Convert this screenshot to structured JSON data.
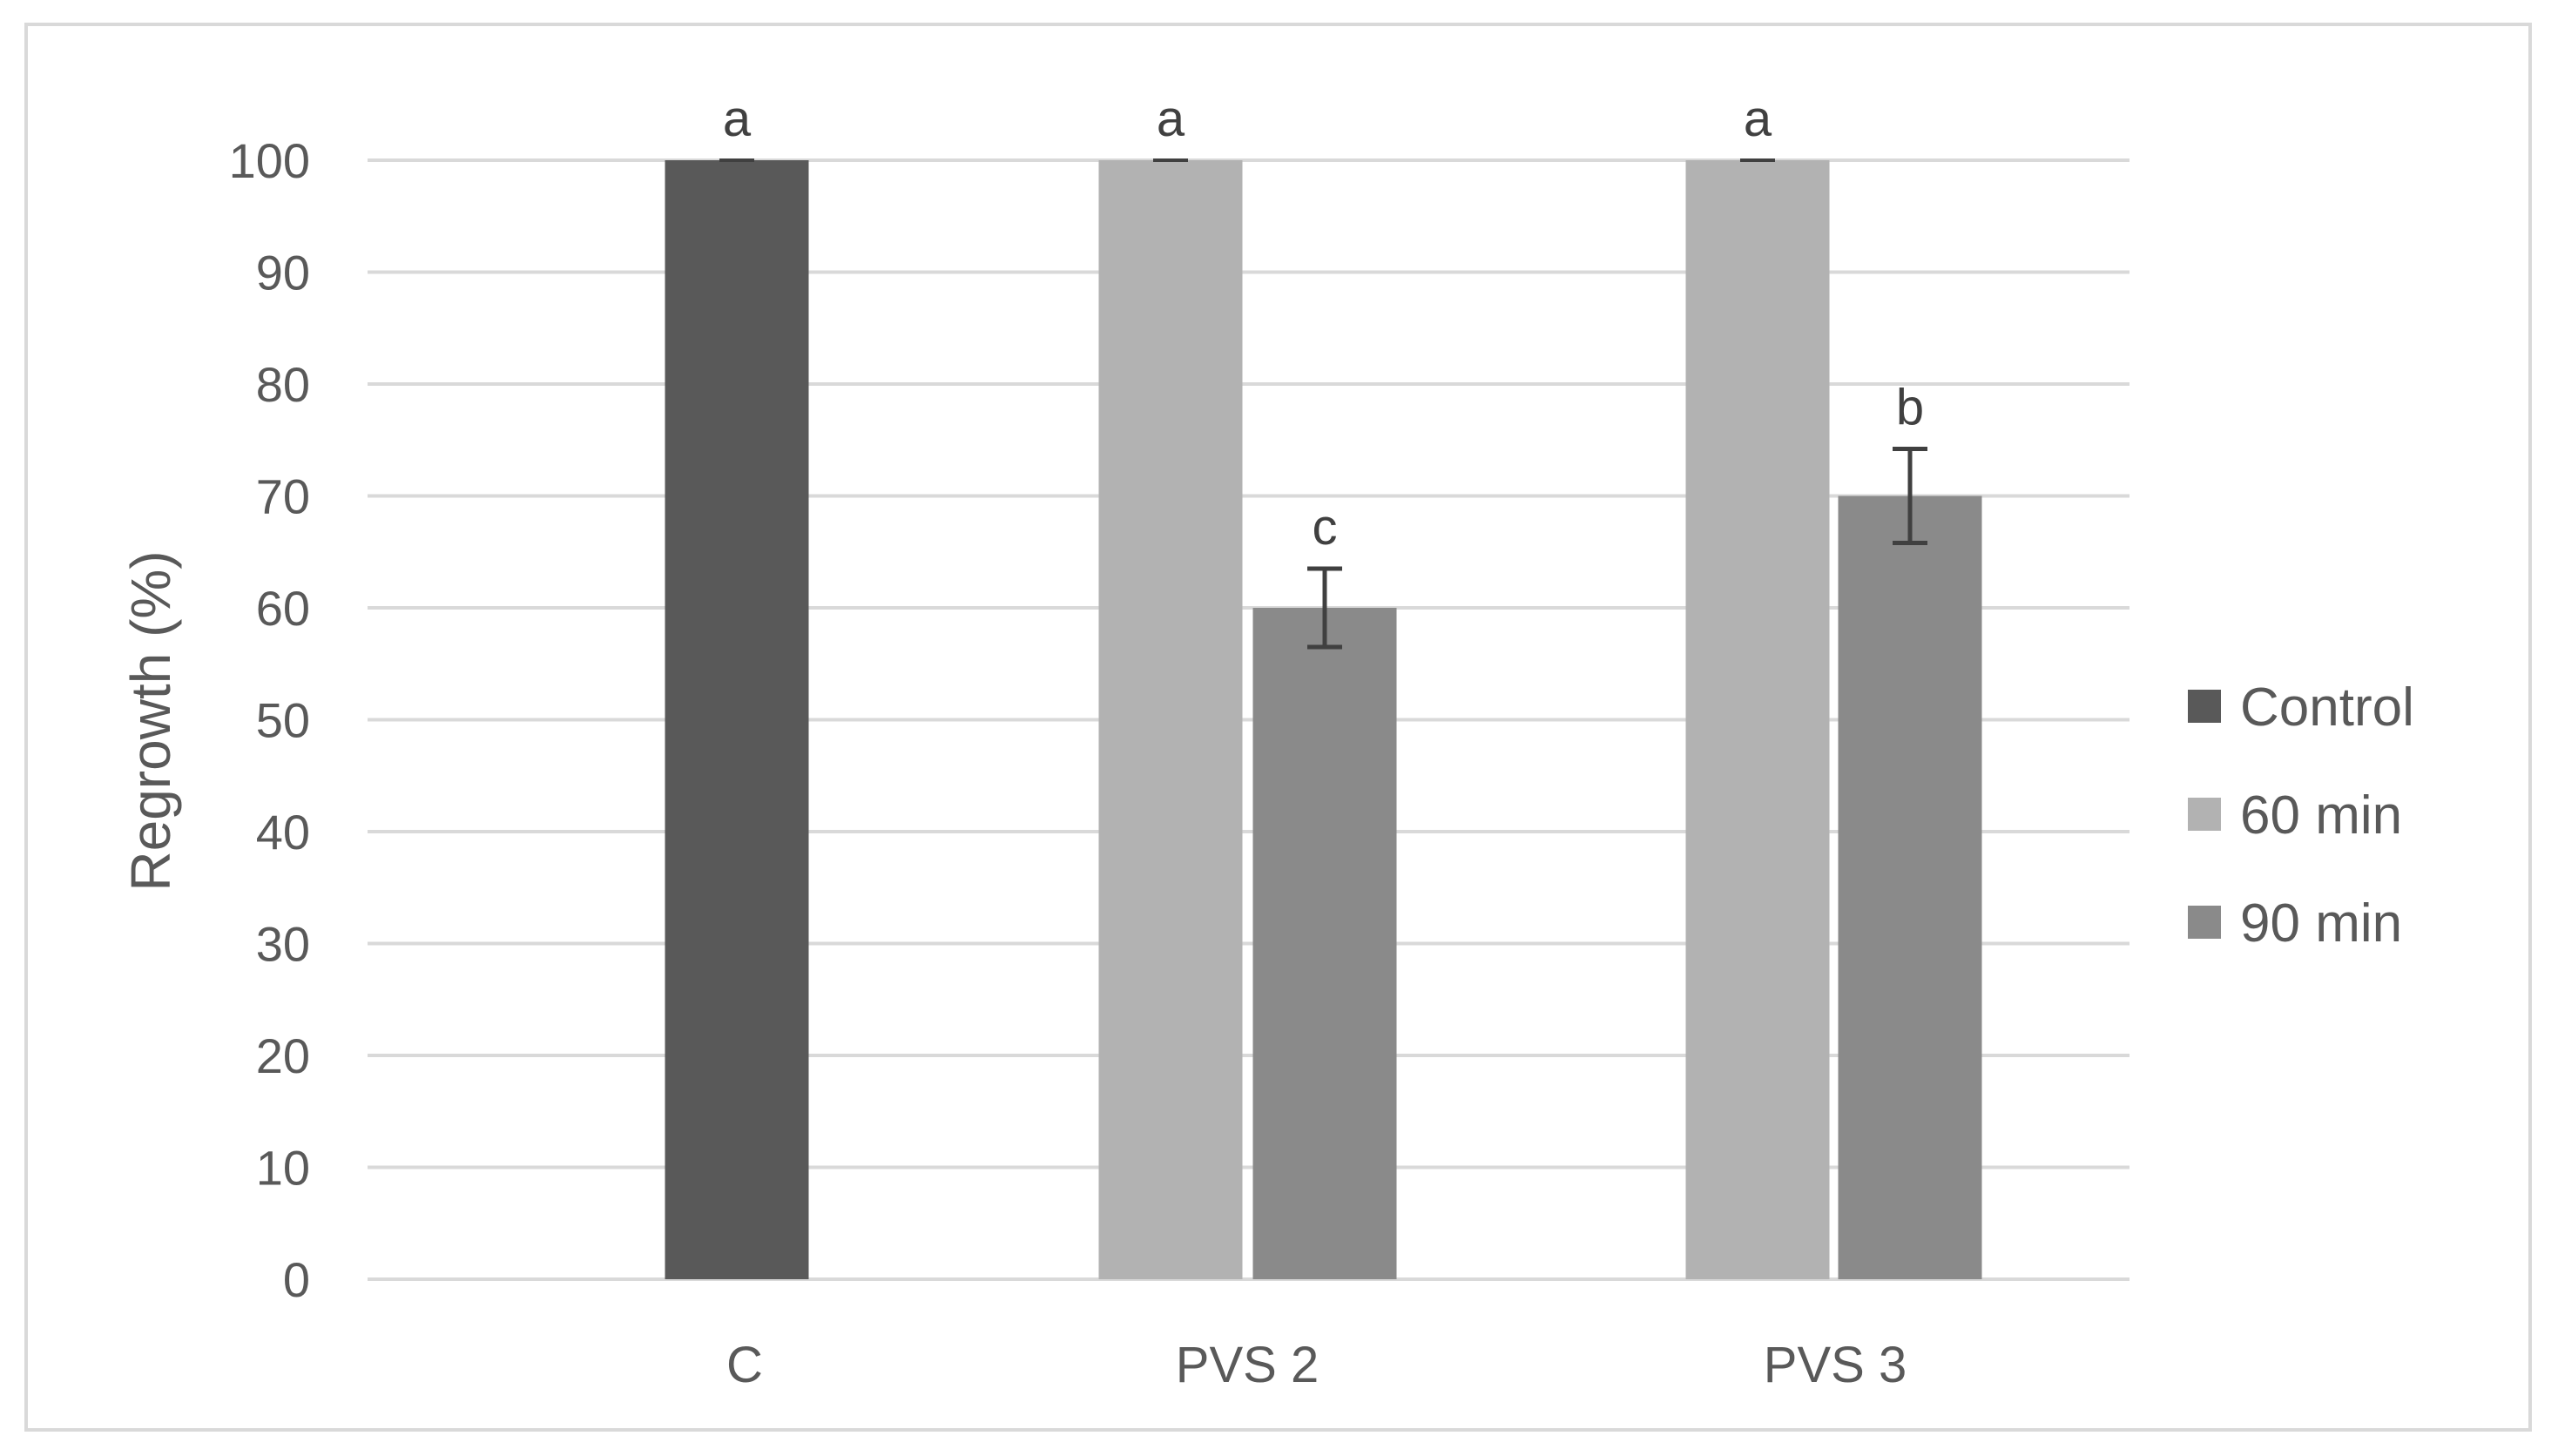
{
  "chart_data": {
    "type": "bar",
    "categories": [
      "C",
      "PVS 2",
      "PVS 3"
    ],
    "ylabel": "Regrowth (%)",
    "xlabel": "",
    "ylim": [
      0,
      100
    ],
    "yticks": [
      0,
      10,
      20,
      30,
      40,
      50,
      60,
      70,
      80,
      90,
      100
    ],
    "grid": true,
    "legend_position": "right",
    "series": [
      {
        "name": "Control",
        "color": "#595959",
        "values": [
          100,
          null,
          null
        ],
        "errors": [
          0,
          null,
          null
        ],
        "labels": [
          "a",
          null,
          null
        ]
      },
      {
        "name": "60 min",
        "color": "#b2b2b2",
        "values": [
          null,
          100,
          100
        ],
        "errors": [
          null,
          0,
          0
        ],
        "labels": [
          null,
          "a",
          "a"
        ]
      },
      {
        "name": "90 min",
        "color": "#8a8a8a",
        "values": [
          null,
          60,
          70
        ],
        "errors": [
          null,
          3.5,
          4.2
        ],
        "labels": [
          null,
          "c",
          "b"
        ]
      }
    ]
  }
}
